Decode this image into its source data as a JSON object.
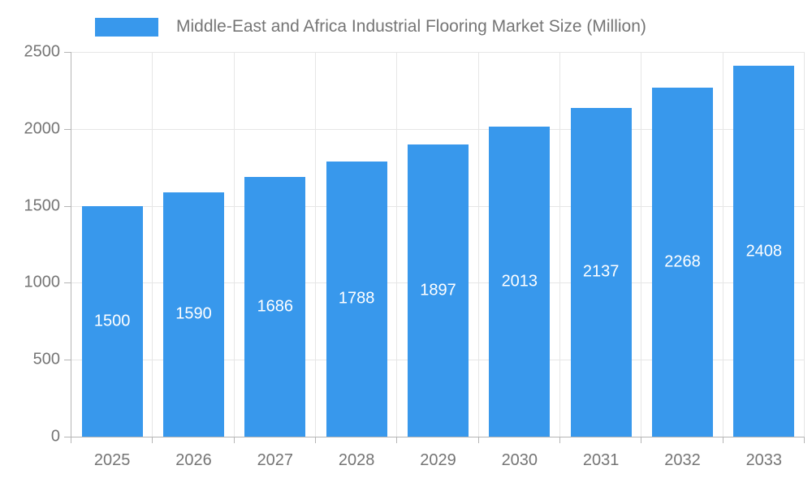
{
  "colors": {
    "bar": "#3898EC",
    "axis_line": "#b5b5b5",
    "gridline": "#e6e6e6",
    "text": "#757575",
    "bar_label_text": "#ffffff",
    "background": "#ffffff"
  },
  "legend": {
    "label": "Middle-East and Africa Industrial Flooring Market Size (Million)"
  },
  "chart_data": {
    "type": "bar",
    "title": "Middle-East and Africa Industrial Flooring Market Size (Million)",
    "categories": [
      "2025",
      "2026",
      "2027",
      "2028",
      "2029",
      "2030",
      "2031",
      "2032",
      "2033"
    ],
    "values": [
      1500,
      1590,
      1686,
      1788,
      1897,
      2013,
      2137,
      2268,
      2408
    ],
    "xlabel": "",
    "ylabel": "",
    "ylim": [
      0,
      2500
    ],
    "yticks": [
      0,
      500,
      1000,
      1500,
      2000,
      2500
    ],
    "grid": true,
    "legend_position": "top",
    "value_label_position": "inside-center"
  }
}
